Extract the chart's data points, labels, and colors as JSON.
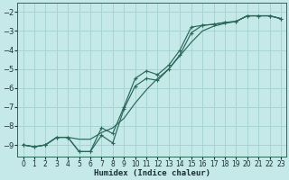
{
  "xlabel": "Humidex (Indice chaleur)",
  "background_color": "#c5e8e8",
  "grid_color": "#a8d4d4",
  "line_color": "#2a6858",
  "xlim": [
    -0.5,
    23.5
  ],
  "ylim": [
    -9.6,
    -1.5
  ],
  "xticks": [
    0,
    1,
    2,
    3,
    4,
    5,
    6,
    7,
    8,
    9,
    10,
    11,
    12,
    13,
    14,
    15,
    16,
    17,
    18,
    19,
    20,
    21,
    22,
    23
  ],
  "yticks": [
    -9,
    -8,
    -7,
    -6,
    -5,
    -4,
    -3,
    -2
  ],
  "curve1_x": [
    0,
    1,
    2,
    3,
    4,
    5,
    6,
    7,
    8,
    9,
    10,
    11,
    12,
    13,
    14,
    15,
    16,
    17,
    18,
    19,
    20,
    21,
    22,
    23
  ],
  "curve1_y": [
    -9.0,
    -9.1,
    -9.0,
    -8.6,
    -8.6,
    -8.7,
    -8.7,
    -8.35,
    -8.1,
    -7.6,
    -6.8,
    -6.1,
    -5.5,
    -5.0,
    -4.3,
    -3.6,
    -3.0,
    -2.75,
    -2.6,
    -2.5,
    -2.2,
    -2.2,
    -2.2,
    -2.35
  ],
  "curve2_x": [
    0,
    1,
    2,
    3,
    4,
    5,
    6,
    7,
    8,
    9,
    10,
    11,
    12,
    13,
    14,
    15,
    16,
    17,
    18,
    19,
    20,
    21,
    22,
    23
  ],
  "curve2_y": [
    -9.0,
    -9.1,
    -9.0,
    -8.6,
    -8.6,
    -9.35,
    -9.35,
    -8.5,
    -8.9,
    -7.1,
    -5.9,
    -5.5,
    -5.6,
    -5.0,
    -4.25,
    -3.1,
    -2.7,
    -2.65,
    -2.55,
    -2.5,
    -2.2,
    -2.2,
    -2.2,
    -2.35
  ],
  "curve3_x": [
    0,
    1,
    2,
    3,
    4,
    5,
    6,
    7,
    8,
    9,
    10,
    11,
    12,
    13,
    14,
    15,
    16,
    17,
    18,
    19,
    20,
    21,
    22,
    23
  ],
  "curve3_y": [
    -9.0,
    -9.1,
    -9.0,
    -8.6,
    -8.6,
    -9.35,
    -9.35,
    -8.1,
    -8.4,
    -7.0,
    -5.5,
    -5.1,
    -5.3,
    -4.8,
    -4.0,
    -2.8,
    -2.7,
    -2.65,
    -2.55,
    -2.5,
    -2.2,
    -2.2,
    -2.2,
    -2.35
  ]
}
